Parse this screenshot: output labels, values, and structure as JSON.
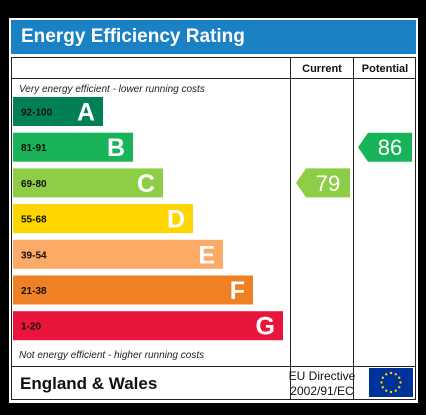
{
  "title": "Energy Efficiency Rating",
  "columns": {
    "current": "Current",
    "potential": "Potential"
  },
  "notes": {
    "top": "Very energy efficient - lower running costs",
    "bottom": "Not energy efficient - higher running costs"
  },
  "footer": {
    "region": "England & Wales",
    "directive_line1": "EU Directive",
    "directive_line2": "2002/91/EC"
  },
  "colors": {
    "title_bar": "#1a81c5",
    "eu_flag": "#003399",
    "eu_stars": "#ffcc00"
  },
  "chart_data": {
    "type": "bar",
    "bands": [
      {
        "range": "92-100",
        "letter": "A",
        "color": "#008054"
      },
      {
        "range": "81-91",
        "letter": "B",
        "color": "#19b459"
      },
      {
        "range": "69-80",
        "letter": "C",
        "color": "#8dce46"
      },
      {
        "range": "55-68",
        "letter": "D",
        "color": "#ffd500"
      },
      {
        "range": "39-54",
        "letter": "E",
        "color": "#fcaa65"
      },
      {
        "range": "21-38",
        "letter": "F",
        "color": "#ef8023"
      },
      {
        "range": "1-20",
        "letter": "G",
        "color": "#e9153b"
      }
    ],
    "current": {
      "value": 79,
      "band": "C",
      "color": "#8dce46"
    },
    "potential": {
      "value": 86,
      "band": "B",
      "color": "#19b459"
    }
  }
}
